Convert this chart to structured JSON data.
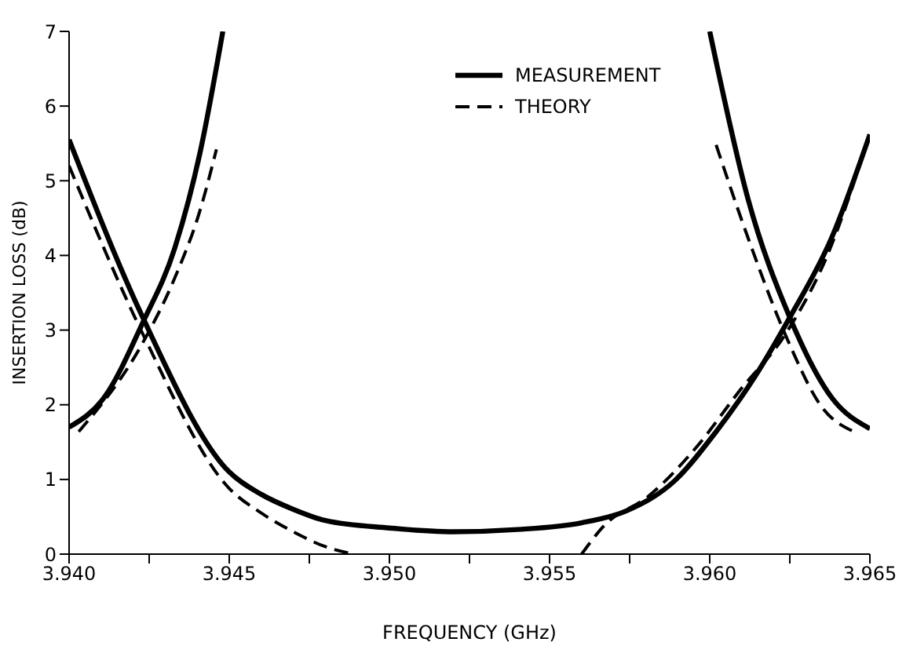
{
  "chart_data": {
    "type": "line",
    "xlabel": "FREQUENCY (GHz)",
    "ylabel": "INSERTION LOSS (dB)",
    "xlim": [
      3.94,
      3.965
    ],
    "ylim": [
      0,
      7
    ],
    "xticks": [
      {
        "value": 3.94,
        "label": "3.940"
      },
      {
        "value": 3.9425,
        "label": null
      },
      {
        "value": 3.945,
        "label": "3.945"
      },
      {
        "value": 3.9475,
        "label": null
      },
      {
        "value": 3.95,
        "label": "3.950"
      },
      {
        "value": 3.9525,
        "label": null
      },
      {
        "value": 3.955,
        "label": "3.955"
      },
      {
        "value": 3.9575,
        "label": null
      },
      {
        "value": 3.96,
        "label": "3.960"
      },
      {
        "value": 3.9625,
        "label": null
      },
      {
        "value": 3.965,
        "label": "3.965"
      }
    ],
    "yticks": [
      0,
      1,
      2,
      3,
      4,
      5,
      6,
      7
    ],
    "legend": "top",
    "marker": "none",
    "series": [
      {
        "name": "MEASUREMENT",
        "color": "#000000",
        "line_style": "solid",
        "x": [
          3.94,
          3.9411,
          3.9423,
          3.9433,
          3.9441,
          3.9448
        ],
        "values": [
          1.7,
          2.1,
          3.1,
          4.1,
          5.4,
          7.0
        ]
      },
      {
        "color": "#000000",
        "line_style": "solid",
        "x": [
          3.94,
          3.9423,
          3.945,
          3.946,
          3.947,
          3.948,
          3.95,
          3.952,
          3.954,
          3.956,
          3.9574,
          3.9589,
          3.9602,
          3.9614,
          3.9625,
          3.9638,
          3.965
        ],
        "values": [
          5.55,
          3.17,
          1.1,
          0.8,
          0.6,
          0.45,
          0.35,
          0.3,
          0.33,
          0.42,
          0.58,
          0.98,
          1.64,
          2.37,
          3.17,
          4.23,
          5.62
        ]
      },
      {
        "color": "#000000",
        "line_style": "solid",
        "x": [
          3.96,
          3.9612,
          3.9625,
          3.9638,
          3.965
        ],
        "values": [
          7.0,
          4.75,
          3.17,
          2.1,
          1.68
        ]
      },
      {
        "name": "THEORY",
        "color": "#000000",
        "line_style": "dashed",
        "x": [
          3.9403,
          3.9423,
          3.9433,
          3.9441,
          3.9446
        ],
        "values": [
          1.64,
          2.83,
          3.7,
          4.62,
          5.42
        ]
      },
      {
        "color": "#000000",
        "line_style": "dashed",
        "x": [
          3.94,
          3.9423,
          3.945,
          3.946,
          3.947,
          3.948,
          3.9489,
          3.952,
          3.956,
          3.9567,
          3.9581,
          3.9596,
          3.9609,
          3.9624,
          3.9637,
          3.9648
        ],
        "values": [
          5.2,
          2.95,
          0.88,
          0.55,
          0.3,
          0.1,
          0,
          null,
          0,
          0.38,
          0.78,
          1.44,
          2.17,
          2.97,
          4.03,
          5.36
        ]
      },
      {
        "color": "#000000",
        "line_style": "dashed",
        "x": [
          3.9602,
          3.9612,
          3.9624,
          3.9635,
          3.9645
        ],
        "values": [
          5.48,
          4.23,
          2.9,
          1.97,
          1.64
        ]
      }
    ]
  }
}
